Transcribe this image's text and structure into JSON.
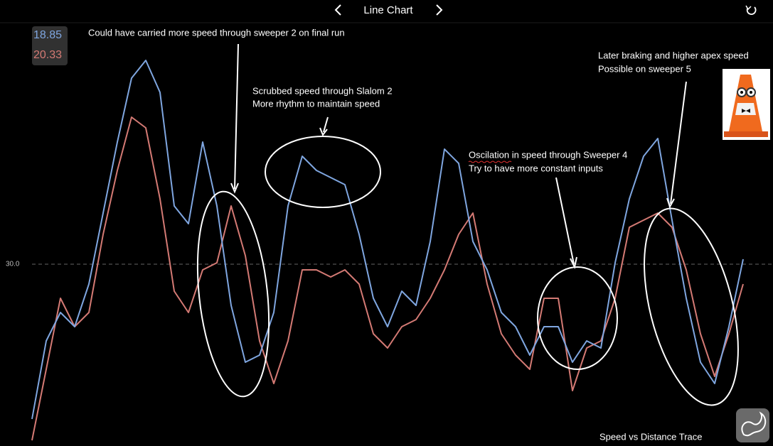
{
  "chart_data": {
    "type": "line",
    "title": "Line Chart",
    "caption": "Speed vs Distance Trace",
    "ylim": [
      17.2,
      46.85
    ],
    "yticks": [
      {
        "value": 30,
        "label": "30.0"
      }
    ],
    "grid": true,
    "annotations": [
      [
        "Could have carried more speed through sweeper 2 on final run"
      ],
      [
        "Scrubbed speed through Slalom 2",
        "More rhythm to maintain speed"
      ],
      [
        "Oscilation in speed through Sweeper 4",
        "Try to have more constant inputs"
      ],
      [
        "Later braking and higher apex speed",
        "Possible on sweeper 5"
      ]
    ],
    "series": [
      {
        "color": "#7fa6e0",
        "readout": 18.85,
        "values": [
          19.1,
          24.6,
          26.6,
          25.6,
          28.6,
          33.6,
          38.6,
          43.1,
          44.35,
          42.1,
          34.1,
          32.85,
          38.6,
          34.1,
          27.1,
          23.1,
          23.6,
          26.6,
          34.1,
          37.6,
          36.6,
          36.1,
          35.6,
          32.1,
          27.6,
          25.6,
          28.1,
          27.1,
          31.6,
          38.1,
          37.1,
          31.6,
          29.6,
          26.6,
          25.6,
          23.6,
          25.6,
          25.6,
          23.1,
          24.6,
          24.1,
          30.1,
          34.6,
          37.6,
          38.85,
          33.1,
          27.6,
          23.1,
          21.6,
          25.6,
          30.35
        ]
      },
      {
        "color": "#d47a74",
        "readout": 20.33,
        "values": [
          17.6,
          22.6,
          27.6,
          25.6,
          26.6,
          32.1,
          36.6,
          40.35,
          39.6,
          34.6,
          28.1,
          26.6,
          29.6,
          30.1,
          34.1,
          30.6,
          24.6,
          21.6,
          24.6,
          29.6,
          29.6,
          29.1,
          29.6,
          28.6,
          25.1,
          24.1,
          25.6,
          26.1,
          27.6,
          29.6,
          32.1,
          33.6,
          28.6,
          25.1,
          23.6,
          22.6,
          27.6,
          27.6,
          21.1,
          24.1,
          24.6,
          27.6,
          32.6,
          33.1,
          33.6,
          32.6,
          29.6,
          25.1,
          22.1,
          25.1,
          28.6
        ]
      }
    ]
  }
}
